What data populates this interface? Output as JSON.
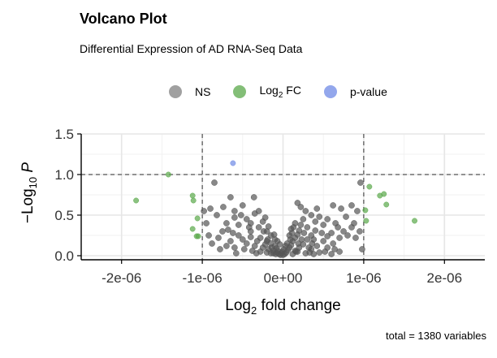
{
  "chart_data": {
    "type": "scatter",
    "title": "Volcano Plot",
    "subtitle": "Differential Expression of AD RNA-Seq Data",
    "caption": "total = 1380 variables",
    "xlabel": {
      "base": "Log",
      "sub": "2",
      "rest": " fold change"
    },
    "ylabel": {
      "prefix": "−Log",
      "sub": "10",
      "var": " P"
    },
    "xlim": [
      -2.5e-06,
      2.5e-06
    ],
    "ylim": [
      -0.05,
      1.5
    ],
    "x_ticks": [
      -2e-06,
      -1e-06,
      0,
      1e-06,
      2e-06
    ],
    "x_tick_labels": [
      "-2e-06",
      "-1e-06",
      "0e+00",
      "1e-06",
      "2e-06"
    ],
    "y_ticks": [
      0.0,
      0.5,
      1.0,
      1.5
    ],
    "y_tick_labels": [
      "0.0",
      "0.5",
      "1.0",
      "1.5"
    ],
    "thresholds": {
      "fc": [
        -1e-06,
        1e-06
      ],
      "p": 1.0
    },
    "grid": true,
    "legend_position": "top",
    "legend": [
      {
        "label": "NS",
        "color": "#808080"
      },
      {
        "label_base": "Log",
        "label_sub": "2",
        "label_rest": " FC",
        "color": "#5aa84a"
      },
      {
        "label": "p-value",
        "color": "#6f8ae6"
      }
    ],
    "series": [
      {
        "name": "Log2 FC",
        "color": "#5aa84a",
        "points": [
          [
            -1.82e-06,
            0.68
          ],
          [
            -1.42e-06,
            1.0
          ],
          [
            -1.12e-06,
            0.74
          ],
          [
            -1.11e-06,
            0.68
          ],
          [
            -1.06e-06,
            0.46
          ],
          [
            -1.12e-06,
            0.33
          ],
          [
            -1.07e-06,
            0.24
          ],
          [
            -1.05e-06,
            0.24
          ],
          [
            1.07e-06,
            0.85
          ],
          [
            1.2e-06,
            0.74
          ],
          [
            1.25e-06,
            0.76
          ],
          [
            1.28e-06,
            0.63
          ],
          [
            1.02e-06,
            0.56
          ],
          [
            1.03e-06,
            0.43
          ],
          [
            1.63e-06,
            0.43
          ]
        ]
      },
      {
        "name": "p-value",
        "color": "#6f8ae6",
        "points": [
          [
            -6.2e-07,
            1.14
          ]
        ]
      },
      {
        "name": "NS",
        "color": "#555555",
        "points": [
          [
            -9e-07,
            0.58
          ],
          [
            -8.5e-07,
            0.9
          ],
          [
            -6.5e-07,
            0.72
          ],
          [
            -6e-07,
            0.55
          ],
          [
            -5e-07,
            0.62
          ],
          [
            -3.6e-07,
            0.72
          ],
          [
            -3e-07,
            0.55
          ],
          [
            -4.5e-07,
            0.45
          ],
          [
            -5.5e-07,
            0.38
          ],
          [
            -7e-07,
            0.4
          ],
          [
            -7.5e-07,
            0.3
          ],
          [
            -8e-07,
            0.22
          ],
          [
            -9.5e-07,
            0.4
          ],
          [
            -6.2e-07,
            0.28
          ],
          [
            -4e-07,
            0.3
          ],
          [
            -3e-07,
            0.35
          ],
          [
            -2.5e-07,
            0.42
          ],
          [
            -2e-07,
            0.3
          ],
          [
            -1.5e-07,
            0.25
          ],
          [
            -1e-07,
            0.2
          ],
          [
            -2e-07,
            0.18
          ],
          [
            -2.8e-07,
            0.22
          ],
          [
            -5e-07,
            0.2
          ],
          [
            -4.5e-07,
            0.15
          ],
          [
            -3.5e-07,
            0.12
          ],
          [
            -2.5e-07,
            0.1
          ],
          [
            -1.8e-07,
            0.08
          ],
          [
            -1.2e-07,
            0.06
          ],
          [
            -8e-08,
            0.04
          ],
          [
            -5e-08,
            0.02
          ],
          [
            -3e-08,
            0.01
          ],
          [
            -1e-07,
            0.12
          ],
          [
            -1.5e-07,
            0.15
          ],
          [
            -1.2e-07,
            0.03
          ],
          [
            -6e-08,
            0.06
          ],
          [
            -2e-08,
            0.03
          ],
          [
            -8e-08,
            0.09
          ],
          [
            -2.2e-07,
            0.14
          ],
          [
            -3.2e-07,
            0.18
          ],
          [
            -4e-07,
            0.23
          ],
          [
            -5.5e-07,
            0.25
          ],
          [
            -6.5e-07,
            0.18
          ],
          [
            -7e-07,
            0.12
          ],
          [
            -6e-07,
            0.1
          ],
          [
            -4.8e-07,
            0.08
          ],
          [
            -3.8e-07,
            0.06
          ],
          [
            -2.8e-07,
            0.05
          ],
          [
            -2e-07,
            0.04
          ],
          [
            -1.5e-07,
            0.03
          ],
          [
            -6e-07,
            0.47
          ],
          [
            -5.2e-07,
            0.5
          ],
          [
            -4e-07,
            0.4
          ],
          [
            -3.5e-07,
            0.52
          ],
          [
            -2.2e-07,
            0.47
          ],
          [
            -1.8e-07,
            0.36
          ],
          [
            2e-08,
            0.02
          ],
          [
            4e-08,
            0.04
          ],
          [
            6e-08,
            0.07
          ],
          [
            8e-08,
            0.1
          ],
          [
            1e-07,
            0.13
          ],
          [
            1.2e-07,
            0.18
          ],
          [
            1.5e-07,
            0.22
          ],
          [
            1.8e-07,
            0.26
          ],
          [
            2e-07,
            0.31
          ],
          [
            2.2e-07,
            0.38
          ],
          [
            2.5e-07,
            0.45
          ],
          [
            1.2e-07,
            0.02
          ],
          [
            1.5e-07,
            0.06
          ],
          [
            2e-07,
            0.1
          ],
          [
            2.5e-07,
            0.14
          ],
          [
            3e-07,
            0.2
          ],
          [
            3.5e-07,
            0.25
          ],
          [
            4e-07,
            0.31
          ],
          [
            2.8e-07,
            0.03
          ],
          [
            3.5e-07,
            0.08
          ],
          [
            4.2e-07,
            0.12
          ],
          [
            5e-07,
            0.18
          ],
          [
            5.5e-07,
            0.24
          ],
          [
            6e-07,
            0.28
          ],
          [
            4.5e-07,
            0.04
          ],
          [
            5.5e-07,
            0.1
          ],
          [
            6.2e-07,
            0.15
          ],
          [
            7e-07,
            0.22
          ],
          [
            7.5e-07,
            0.3
          ],
          [
            8e-07,
            0.25
          ],
          [
            8.5e-07,
            0.35
          ],
          [
            9e-07,
            0.22
          ],
          [
            9.5e-07,
            0.3
          ],
          [
            6.5e-07,
            0.4
          ],
          [
            5.5e-07,
            0.45
          ],
          [
            4.2e-07,
            0.58
          ],
          [
            7.8e-07,
            0.48
          ],
          [
            8.5e-07,
            0.62
          ],
          [
            9.2e-07,
            0.55
          ],
          [
            9.6e-07,
            0.9
          ],
          [
            8.8e-07,
            0.4
          ],
          [
            7e-07,
            0.05
          ],
          [
            6e-07,
            0.02
          ],
          [
            3.3e-07,
            0.04
          ],
          [
            1.8e-07,
            0.05
          ],
          [
            5e-08,
            0.15
          ],
          [
            8e-08,
            0.25
          ],
          [
            1e-07,
            0.33
          ],
          [
            3e-07,
            0.35
          ],
          [
            1.5e-07,
            0.4
          ],
          [
            4.5e-07,
            0.48
          ],
          [
            3.8e-07,
            0.2
          ],
          [
            4.8e-07,
            0.28
          ],
          [
            6.8e-07,
            0.35
          ],
          [
            9.8e-07,
            0.08
          ],
          [
            -5.8e-07,
            0.03
          ],
          [
            -7.8e-07,
            0.08
          ],
          [
            -8.8e-07,
            0.15
          ],
          [
            -9.2e-07,
            0.25
          ],
          [
            0.0,
            0.01
          ],
          [
            -1e-08,
            0.05
          ],
          [
            1e-08,
            0.08
          ],
          [
            3e-08,
            0.12
          ],
          [
            -4e-08,
            0.14
          ],
          [
            -7e-08,
            0.18
          ],
          [
            9e-08,
            0.2
          ],
          [
            1.1e-07,
            0.28
          ],
          [
            -1.1e-07,
            0.26
          ],
          [
            1.3e-07,
            0.35
          ],
          [
            1.6e-07,
            0.05
          ],
          [
            1.9e-07,
            0.15
          ],
          [
            2.3e-07,
            0.2
          ],
          [
            2.6e-07,
            0.28
          ],
          [
            3.2e-07,
            0.1
          ],
          [
            3.6e-07,
            0.15
          ],
          [
            -2.4e-07,
            0.3
          ],
          [
            -1.9e-07,
            0.2
          ],
          [
            -1.4e-07,
            0.1
          ],
          [
            -9e-08,
            0.02
          ],
          [
            -3.3e-07,
            0.03
          ],
          [
            -4.2e-07,
            0.35
          ],
          [
            -6.8e-07,
            0.32
          ],
          [
            -7.4e-07,
            0.6
          ],
          [
            -8.2e-07,
            0.5
          ],
          [
            -9.8e-07,
            0.55
          ],
          [
            7.2e-07,
            0.58
          ],
          [
            6.2e-07,
            0.62
          ],
          [
            5e-07,
            0.38
          ],
          [
            4e-07,
            0.42
          ],
          [
            3.5e-07,
            0.5
          ],
          [
            2.8e-07,
            0.55
          ],
          [
            2.2e-07,
            0.6
          ],
          [
            1.8e-07,
            0.65
          ],
          [
            3.8e-07,
            0.02
          ],
          [
            5.2e-07,
            0.05
          ],
          [
            6.4e-07,
            0.08
          ]
        ]
      }
    ]
  }
}
